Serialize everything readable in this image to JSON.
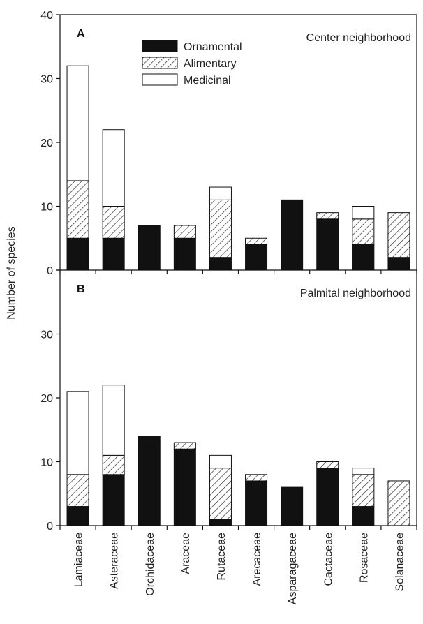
{
  "chart_data": {
    "type": "bar",
    "stacked": true,
    "ylabel": "Number of species",
    "xlabel": "",
    "ylim": [
      0,
      40
    ],
    "yticks": [
      0,
      10,
      20,
      30,
      40
    ],
    "categories": [
      "Lamiaceae",
      "Asteraceae",
      "Orchidaceae",
      "Araceae",
      "Rutaceae",
      "Arecaceae",
      "Asparagaceae",
      "Cactaceae",
      "Rosaceae",
      "Solanaceae"
    ],
    "legend": {
      "placement": "top-center (panel A)",
      "entries": [
        {
          "name": "Ornamental",
          "style": "solid-black"
        },
        {
          "name": "Alimentary",
          "style": "hatched"
        },
        {
          "name": "Medicinal",
          "style": "white"
        }
      ]
    },
    "panels": [
      {
        "letter": "A",
        "title": "Center neighborhood",
        "yticks_shown": [
          0,
          10,
          20,
          30,
          40
        ],
        "series": [
          {
            "name": "Ornamental",
            "values": [
              5,
              5,
              7,
              5,
              2,
              4,
              11,
              8,
              4,
              2
            ]
          },
          {
            "name": "Alimentary",
            "values": [
              9,
              5,
              0,
              2,
              9,
              1,
              0,
              1,
              4,
              7
            ]
          },
          {
            "name": "Medicinal",
            "values": [
              18,
              12,
              0,
              0,
              2,
              0,
              0,
              0,
              2,
              0
            ]
          }
        ]
      },
      {
        "letter": "B",
        "title": "Palmital neighborhood",
        "yticks_shown": [
          0,
          10,
          20,
          30
        ],
        "series": [
          {
            "name": "Ornamental",
            "values": [
              3,
              8,
              14,
              12,
              1,
              7,
              6,
              9,
              3,
              0
            ]
          },
          {
            "name": "Alimentary",
            "values": [
              5,
              3,
              0,
              1,
              8,
              1,
              0,
              1,
              5,
              7
            ]
          },
          {
            "name": "Medicinal",
            "values": [
              13,
              11,
              0,
              0,
              2,
              0,
              0,
              0,
              1,
              0
            ]
          }
        ]
      }
    ]
  }
}
